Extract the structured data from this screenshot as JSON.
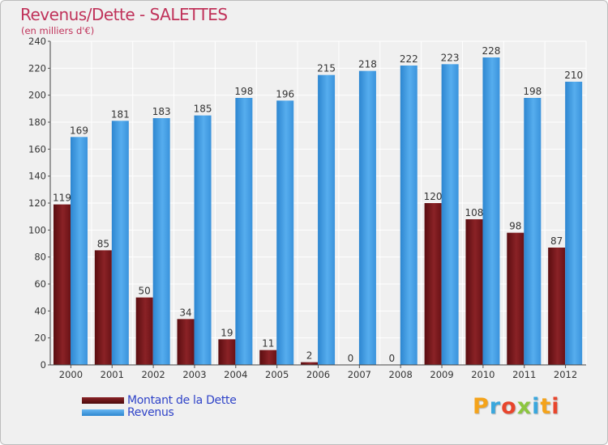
{
  "title": "Revenus/Dette - SALETTES",
  "subtitle": "(en milliers d'€)",
  "legend": {
    "debt_label": "Montant de la Dette",
    "revenue_label": "Revenus"
  },
  "logo": {
    "text": "Proxiti"
  },
  "colors": {
    "debt": "#7a1a1e",
    "revenue": "#3d9be3",
    "title": "#c0325a",
    "legend_text": "#2f43c8"
  },
  "chart_data": {
    "type": "bar",
    "title": "Revenus/Dette - SALETTES",
    "subtitle": "(en milliers d'€)",
    "categories": [
      "2000",
      "2001",
      "2002",
      "2003",
      "2004",
      "2005",
      "2006",
      "2007",
      "2008",
      "2009",
      "2010",
      "2011",
      "2012"
    ],
    "series": [
      {
        "name": "Montant de la Dette",
        "values": [
          119,
          85,
          50,
          34,
          19,
          11,
          2,
          0,
          0,
          120,
          108,
          98,
          87
        ]
      },
      {
        "name": "Revenus",
        "values": [
          169,
          181,
          183,
          185,
          198,
          196,
          215,
          218,
          222,
          223,
          228,
          198,
          210
        ]
      }
    ],
    "ylim": [
      0,
      240
    ],
    "yticks": [
      0,
      20,
      40,
      60,
      80,
      100,
      120,
      140,
      160,
      180,
      200,
      220,
      240
    ],
    "grid": true,
    "legend_position": "bottom-left"
  }
}
